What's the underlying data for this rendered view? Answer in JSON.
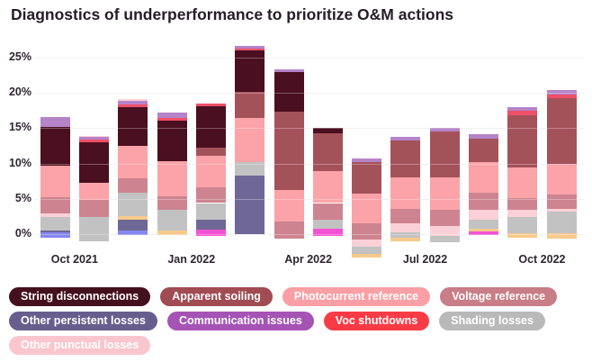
{
  "title": "Diagnostics of underperformance to prioritize O&M actions",
  "chart_data": {
    "type": "bar",
    "stacked": true,
    "title": "Diagnostics of underperformance to prioritize O&M actions",
    "ylabel": "",
    "xlabel": "",
    "ylim": [
      -3.5,
      27
    ],
    "grid": true,
    "ytick_labels": [
      "0%",
      "5%",
      "10%",
      "15%",
      "20%",
      "25%"
    ],
    "ytick_values": [
      0,
      5,
      10,
      15,
      20,
      25
    ],
    "xtick_labels": [
      {
        "label": "Oct 2021",
        "boundary_after_bar": 0
      },
      {
        "label": "Jan 2022",
        "boundary_after_bar": 3
      },
      {
        "label": "Apr 2022",
        "boundary_after_bar": 6
      },
      {
        "label": "Jul 2022",
        "boundary_after_bar": 9
      },
      {
        "label": "Oct 2022",
        "boundary_after_bar": 12
      }
    ],
    "colors": {
      "maroon": "#4a0f20",
      "brick": "#a4525a",
      "salmon": "#fba3a8",
      "rose": "#cd8490",
      "slate": "#6f6795",
      "orchid": "#b583c8",
      "voc": "#ef5068",
      "gray": "#c2c2c2",
      "lightpink": "#fbd0d7",
      "periwinkle": "#8487ef",
      "magenta": "#f353d3",
      "orange": "#f7ca8c"
    },
    "series_legend_names": {
      "maroon": "String disconnections",
      "brick": "Apparent soiling",
      "salmon": "Photocurrent reference",
      "rose": "Voltage reference",
      "slate": "Other persistent losses",
      "orchid": "Communication issues",
      "voc": "Voc shutdowns",
      "gray": "Shading losses",
      "lightpink": "Other punctual losses",
      "periwinkle": "unlabeled-blue",
      "magenta": "unlabeled-magenta",
      "orange": "unlabeled-orange"
    },
    "value_unit": "%",
    "bars": [
      {
        "month": "Sep 2021",
        "base": -0.5,
        "segments": [
          [
            "periwinkle",
            0.75
          ],
          [
            "slate",
            0.3
          ],
          [
            "gray",
            1.9
          ],
          [
            "lightpink",
            0.5
          ],
          [
            "rose",
            2.3
          ],
          [
            "salmon",
            4.4
          ],
          [
            "maroon",
            5.55
          ],
          [
            "orchid",
            1.4
          ]
        ]
      },
      {
        "month": "Oct 2021",
        "base": -1.0,
        "segments": [
          [
            "gray",
            3.4
          ],
          [
            "rose",
            2.4
          ],
          [
            "salmon",
            2.5
          ],
          [
            "maroon",
            5.7
          ],
          [
            "voc",
            0.35
          ],
          [
            "orchid",
            0.4
          ],
          [
            "lightpink",
            0.2
          ]
        ]
      },
      {
        "month": "Nov 2021",
        "base": -0.1,
        "segments": [
          [
            "periwinkle",
            0.65
          ],
          [
            "slate",
            1.5
          ],
          [
            "orange",
            0.45
          ],
          [
            "gray",
            3.4
          ],
          [
            "rose",
            2.0
          ],
          [
            "salmon",
            4.6
          ],
          [
            "maroon",
            5.5
          ],
          [
            "voc",
            0.4
          ],
          [
            "orchid",
            0.5
          ],
          [
            "lightpink",
            0.2
          ]
        ]
      },
      {
        "month": "Dec 2021",
        "base": -0.1,
        "segments": [
          [
            "orange",
            0.6
          ],
          [
            "gray",
            2.9
          ],
          [
            "rose",
            2.0
          ],
          [
            "salmon",
            4.9
          ],
          [
            "maroon",
            5.8
          ],
          [
            "voc",
            0.4
          ],
          [
            "orchid",
            0.7
          ]
        ]
      },
      {
        "month": "Jan 2022",
        "base": -0.25,
        "segments": [
          [
            "magenta",
            0.95
          ],
          [
            "slate",
            1.4
          ],
          [
            "gray",
            2.3
          ],
          [
            "rose",
            2.2
          ],
          [
            "salmon",
            4.5
          ],
          [
            "brick",
            1.2
          ],
          [
            "maroon",
            5.8
          ],
          [
            "voc",
            0.4
          ]
        ]
      },
      {
        "month": "Feb 2022",
        "base": 0,
        "segments": [
          [
            "slate",
            8.3
          ],
          [
            "gray",
            1.9
          ],
          [
            "salmon",
            6.2
          ],
          [
            "brick",
            3.7
          ],
          [
            "maroon",
            5.9
          ],
          [
            "voc",
            0.3
          ],
          [
            "orchid",
            0.3
          ]
        ]
      },
      {
        "month": "Mar 2022",
        "base": -0.7,
        "segments": [
          [
            "rose",
            2.5
          ],
          [
            "salmon",
            4.5
          ],
          [
            "brick",
            11.0
          ],
          [
            "maroon",
            5.7
          ],
          [
            "orchid",
            0.4
          ]
        ]
      },
      {
        "month": "Apr 2022",
        "base": -0.25,
        "segments": [
          [
            "magenta",
            1.0
          ],
          [
            "gray",
            1.35
          ],
          [
            "rose",
            2.3
          ],
          [
            "salmon",
            4.5
          ],
          [
            "brick",
            5.4
          ],
          [
            "maroon",
            0.8
          ]
        ]
      },
      {
        "month": "May 2022",
        "base": -3.3,
        "segments": [
          [
            "orange",
            0.45
          ],
          [
            "gray",
            1.1
          ],
          [
            "lightpink",
            1.0
          ],
          [
            "rose",
            2.25
          ],
          [
            "salmon",
            4.3
          ],
          [
            "brick",
            4.4
          ],
          [
            "orchid",
            0.55
          ]
        ]
      },
      {
        "month": "Jun 2022",
        "base": -1.05,
        "segments": [
          [
            "orange",
            0.55
          ],
          [
            "gray",
            0.7
          ],
          [
            "lightpink",
            1.3
          ],
          [
            "rose",
            2.1
          ],
          [
            "salmon",
            4.4
          ],
          [
            "brick",
            5.3
          ],
          [
            "orchid",
            0.45
          ]
        ]
      },
      {
        "month": "Jul 2022",
        "base": -1.1,
        "segments": [
          [
            "gray",
            0.8
          ],
          [
            "lightpink",
            1.4
          ],
          [
            "rose",
            2.4
          ],
          [
            "salmon",
            4.5
          ],
          [
            "brick",
            6.6
          ],
          [
            "orchid",
            0.5
          ]
        ]
      },
      {
        "month": "Aug 2022",
        "base": -0.1,
        "segments": [
          [
            "magenta",
            0.5
          ],
          [
            "orange",
            0.4
          ],
          [
            "gray",
            1.3
          ],
          [
            "lightpink",
            1.4
          ],
          [
            "rose",
            2.4
          ],
          [
            "salmon",
            4.3
          ],
          [
            "brick",
            3.3
          ],
          [
            "orchid",
            0.6
          ]
        ]
      },
      {
        "month": "Sep 2022",
        "base": -0.55,
        "segments": [
          [
            "orange",
            0.65
          ],
          [
            "gray",
            2.3
          ],
          [
            "lightpink",
            1.1
          ],
          [
            "rose",
            1.6
          ],
          [
            "salmon",
            4.4
          ],
          [
            "brick",
            7.3
          ],
          [
            "voc",
            0.7
          ],
          [
            "orchid",
            0.5
          ]
        ]
      },
      {
        "month": "Oct 2022",
        "base": -0.6,
        "segments": [
          [
            "orange",
            0.7
          ],
          [
            "gray",
            3.1
          ],
          [
            "lightpink",
            0.4
          ],
          [
            "rose",
            2.0
          ],
          [
            "salmon",
            4.4
          ],
          [
            "brick",
            9.2
          ],
          [
            "voc",
            0.6
          ],
          [
            "orchid",
            0.6
          ]
        ]
      }
    ]
  },
  "legend": {
    "rows": [
      [
        {
          "label": "String disconnections",
          "color": "#45101d"
        },
        {
          "label": "Apparent soiling",
          "color": "#a14b52"
        },
        {
          "label": "Photocurrent reference",
          "color": "#f99fa5"
        },
        {
          "label": "Voltage reference",
          "color": "#c87d87"
        }
      ],
      [
        {
          "label": "Other persistent losses",
          "color": "#675e8e"
        },
        {
          "label": "Communication issues",
          "color": "#a553b5"
        },
        {
          "label": "Voc shutdowns",
          "color": "#f93b46"
        },
        {
          "label": "Shading losses",
          "color": "#b9b9b9"
        }
      ],
      [
        {
          "label": "Other punctual losses",
          "color": "#f9c6cd"
        }
      ]
    ]
  }
}
